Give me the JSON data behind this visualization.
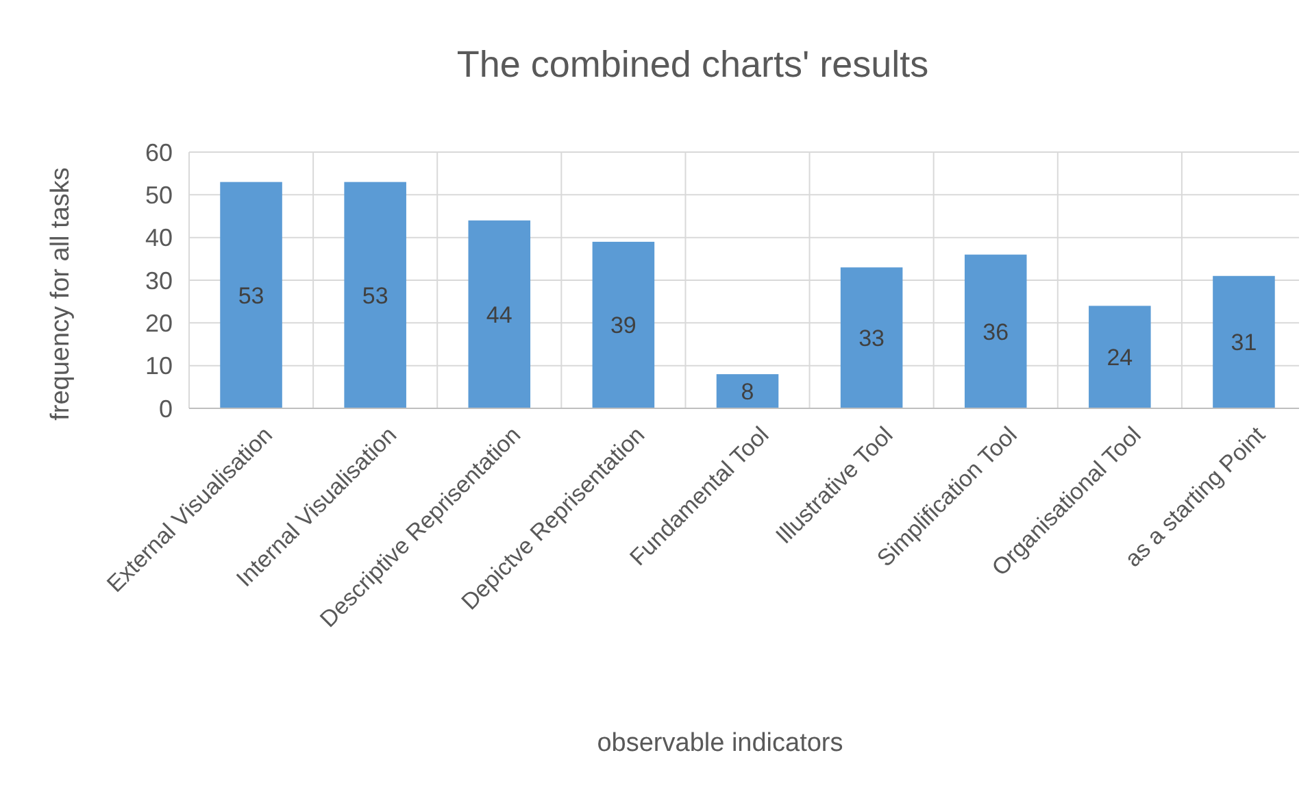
{
  "chart_data": {
    "type": "bar",
    "title": "The combined charts' results",
    "xlabel": "observable indicators",
    "ylabel": "frequency for all tasks",
    "categories": [
      "External Visualisation",
      "Internal Visualisation",
      "Descriptive Reprisentation",
      "Depictve Reprisentation",
      "Fundamental Tool",
      "Illustrative Tool",
      "Simplification Tool",
      "Organisational Tool",
      "as a starting Point"
    ],
    "values": [
      53,
      53,
      44,
      39,
      8,
      33,
      36,
      24,
      31
    ],
    "color": "#5b9bd5",
    "ylim": [
      0,
      60
    ],
    "yticks": [
      0,
      10,
      20,
      30,
      40,
      50,
      60
    ],
    "grid": true,
    "data_labels": true
  }
}
